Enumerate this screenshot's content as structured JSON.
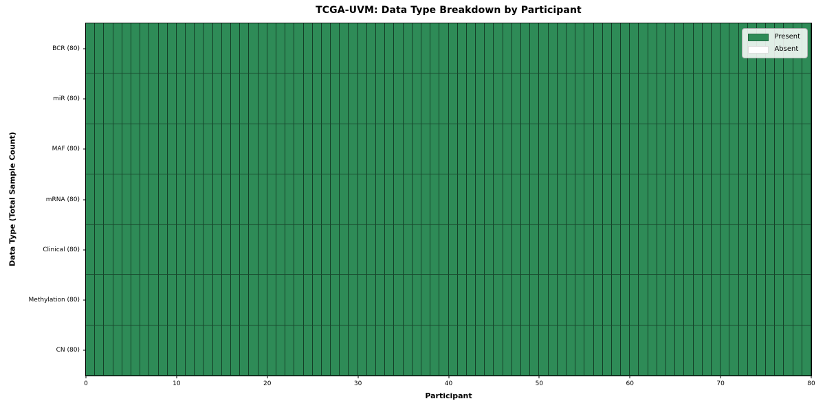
{
  "title": "TCGA-UVM: Data Type Breakdown by Participant",
  "axes": {
    "x_label": "Participant",
    "y_label": "Data Type (Total Sample Count)"
  },
  "legend": {
    "entries": [
      {
        "label": "Present",
        "color": "#2e8b57",
        "border": "rgba(0,0,0,0.25)"
      },
      {
        "label": "Absent",
        "color": "#ffffff",
        "border": "#dddddd"
      }
    ]
  },
  "chart_data": {
    "type": "heatmap",
    "title": "TCGA-UVM: Data Type Breakdown by Participant",
    "xlabel": "Participant",
    "ylabel": "Data Type (Total Sample Count)",
    "xlim": [
      0,
      80
    ],
    "x_ticks": [
      0,
      10,
      20,
      30,
      40,
      50,
      60,
      70,
      80
    ],
    "n_participants": 80,
    "rows": [
      {
        "label": "BCR (80)",
        "present_count": 80
      },
      {
        "label": "miR (80)",
        "present_count": 80
      },
      {
        "label": "MAF (80)",
        "present_count": 80
      },
      {
        "label": "mRNA (80)",
        "present_count": 80
      },
      {
        "label": "Clinical (80)",
        "present_count": 80
      },
      {
        "label": "Methylation (80)",
        "present_count": 80
      },
      {
        "label": "CN (80)",
        "present_count": 80
      }
    ],
    "colors": {
      "present": "#2e8b57",
      "absent": "#ffffff",
      "cell_border": "rgba(0,0,0,0.55)"
    },
    "legend_entries": [
      "Present",
      "Absent"
    ],
    "legend_position": "upper right",
    "grid": false
  }
}
